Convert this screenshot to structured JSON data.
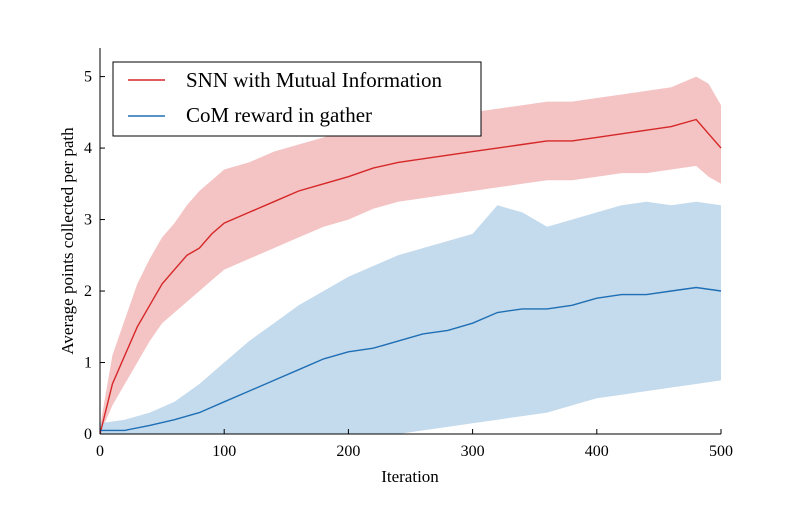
{
  "chart_data": {
    "type": "line",
    "title": "",
    "xlabel": "Iteration",
    "ylabel": "Average points collected per path",
    "xlim": [
      0,
      500
    ],
    "ylim": [
      0,
      5.4
    ],
    "xticks": [
      0,
      100,
      200,
      300,
      400,
      500
    ],
    "yticks": [
      0,
      1,
      2,
      3,
      4,
      5
    ],
    "grid": false,
    "legend_position": "top-left",
    "shaded_band": "shaded region around each line (spread across runs)",
    "series": [
      {
        "name": "SNN with Mutual Information",
        "color": "#d62728",
        "band_color": "#f2b9b9",
        "x": [
          0,
          10,
          20,
          30,
          40,
          50,
          60,
          70,
          80,
          90,
          100,
          120,
          140,
          160,
          180,
          200,
          220,
          240,
          260,
          280,
          300,
          320,
          340,
          360,
          380,
          400,
          420,
          440,
          460,
          480,
          490,
          500
        ],
        "y": [
          0.0,
          0.7,
          1.1,
          1.5,
          1.8,
          2.1,
          2.3,
          2.5,
          2.6,
          2.8,
          2.95,
          3.1,
          3.25,
          3.4,
          3.5,
          3.6,
          3.72,
          3.8,
          3.85,
          3.9,
          3.95,
          4.0,
          4.05,
          4.1,
          4.1,
          4.15,
          4.2,
          4.25,
          4.3,
          4.4,
          4.2,
          4.0
        ],
        "lower": [
          0.0,
          0.4,
          0.7,
          1.0,
          1.3,
          1.55,
          1.7,
          1.85,
          2.0,
          2.15,
          2.3,
          2.45,
          2.6,
          2.75,
          2.9,
          3.0,
          3.15,
          3.25,
          3.3,
          3.35,
          3.4,
          3.45,
          3.5,
          3.55,
          3.55,
          3.6,
          3.65,
          3.65,
          3.7,
          3.75,
          3.6,
          3.5
        ],
        "upper": [
          0.1,
          1.1,
          1.6,
          2.1,
          2.45,
          2.75,
          2.95,
          3.2,
          3.4,
          3.55,
          3.7,
          3.8,
          3.95,
          4.05,
          4.15,
          4.25,
          4.3,
          4.35,
          4.4,
          4.45,
          4.5,
          4.55,
          4.6,
          4.65,
          4.65,
          4.7,
          4.75,
          4.8,
          4.85,
          5.0,
          4.9,
          4.6
        ]
      },
      {
        "name": "CoM reward in gather",
        "color": "#1f6fb4",
        "band_color": "#bad4ea",
        "x": [
          0,
          20,
          40,
          60,
          80,
          100,
          120,
          140,
          160,
          180,
          200,
          220,
          240,
          260,
          280,
          300,
          320,
          340,
          360,
          380,
          400,
          420,
          440,
          460,
          480,
          500
        ],
        "y": [
          0.05,
          0.05,
          0.12,
          0.2,
          0.3,
          0.45,
          0.6,
          0.75,
          0.9,
          1.05,
          1.15,
          1.2,
          1.3,
          1.4,
          1.45,
          1.55,
          1.7,
          1.75,
          1.75,
          1.8,
          1.9,
          1.95,
          1.95,
          2.0,
          2.05,
          2.0
        ],
        "lower": [
          0.0,
          0.0,
          0.0,
          0.0,
          0.0,
          0.0,
          0.0,
          0.0,
          0.0,
          0.0,
          0.0,
          0.0,
          0.0,
          0.05,
          0.1,
          0.15,
          0.2,
          0.25,
          0.3,
          0.4,
          0.5,
          0.55,
          0.6,
          0.65,
          0.7,
          0.75
        ],
        "upper": [
          0.15,
          0.2,
          0.3,
          0.45,
          0.7,
          1.0,
          1.3,
          1.55,
          1.8,
          2.0,
          2.2,
          2.35,
          2.5,
          2.6,
          2.7,
          2.8,
          3.2,
          3.1,
          2.9,
          3.0,
          3.1,
          3.2,
          3.25,
          3.2,
          3.25,
          3.2
        ]
      }
    ]
  }
}
